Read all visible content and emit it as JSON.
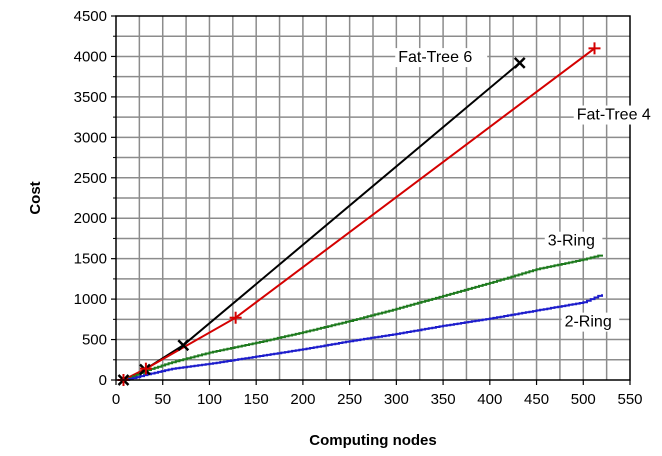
{
  "chart_data": {
    "type": "line",
    "title": "",
    "xlabel": "Computing nodes",
    "ylabel": "Cost",
    "xlim": [
      0,
      550
    ],
    "ylim": [
      0,
      4500
    ],
    "grid": true,
    "legend": "inline",
    "x_ticks": [
      0,
      50,
      100,
      150,
      200,
      250,
      300,
      350,
      400,
      450,
      500,
      550
    ],
    "y_ticks": [
      0,
      500,
      1000,
      1500,
      2000,
      2500,
      3000,
      3500,
      4000,
      4500
    ],
    "series": [
      {
        "name": "Fat-Tree 6",
        "color": "#000000",
        "marker": "x",
        "step": false,
        "points": [
          [
            8,
            0
          ],
          [
            31,
            130
          ],
          [
            72,
            430
          ],
          [
            432,
            3920
          ]
        ],
        "markers": [
          [
            8,
            0
          ],
          [
            31,
            130
          ],
          [
            72,
            430
          ],
          [
            432,
            3920
          ]
        ]
      },
      {
        "name": "Fat-Tree 4",
        "color": "#d40000",
        "marker": "+",
        "step": false,
        "points": [
          [
            8,
            0
          ],
          [
            32,
            140
          ],
          [
            128,
            770
          ],
          [
            512,
            4100
          ]
        ],
        "markers": [
          [
            8,
            0
          ],
          [
            32,
            140
          ],
          [
            128,
            770
          ],
          [
            512,
            4100
          ]
        ]
      },
      {
        "name": "3-Ring",
        "color": "#1e7a1e",
        "marker": "none",
        "step": true,
        "points": [
          [
            10,
            0
          ],
          [
            30,
            110
          ],
          [
            60,
            220
          ],
          [
            100,
            340
          ],
          [
            150,
            460
          ],
          [
            200,
            590
          ],
          [
            250,
            730
          ],
          [
            300,
            880
          ],
          [
            350,
            1040
          ],
          [
            400,
            1200
          ],
          [
            450,
            1370
          ],
          [
            500,
            1490
          ],
          [
            520,
            1550
          ]
        ]
      },
      {
        "name": "2-Ring",
        "color": "#1c1ccc",
        "marker": "none",
        "step": true,
        "points": [
          [
            10,
            0
          ],
          [
            30,
            60
          ],
          [
            60,
            140
          ],
          [
            100,
            200
          ],
          [
            150,
            290
          ],
          [
            200,
            380
          ],
          [
            250,
            480
          ],
          [
            300,
            570
          ],
          [
            350,
            670
          ],
          [
            400,
            760
          ],
          [
            450,
            860
          ],
          [
            500,
            960
          ],
          [
            520,
            1060
          ]
        ]
      }
    ],
    "annotations": [
      {
        "text": "Fat-Tree 6",
        "x": 302,
        "y": 3930
      },
      {
        "text": "Fat-Tree 4",
        "x": 493,
        "y": 3220
      },
      {
        "text": "3-Ring",
        "x": 462,
        "y": 1660
      },
      {
        "text": "2-Ring",
        "x": 480,
        "y": 660
      }
    ]
  }
}
